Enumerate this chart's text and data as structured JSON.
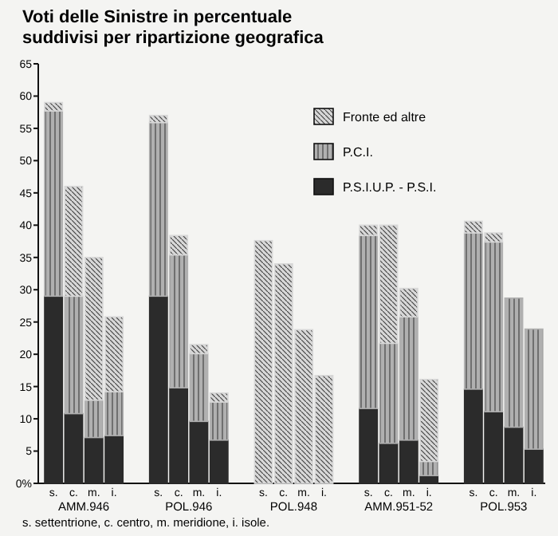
{
  "chart_data": {
    "type": "bar",
    "stacked": true,
    "title": "Voti delle Sinistre in percentuale\nsuddivisi per ripartizione geografica",
    "categories": [
      "s.",
      "c.",
      "m.",
      "i.",
      "s.",
      "c.",
      "m.",
      "i.",
      "s.",
      "c.",
      "m.",
      "i.",
      "s.",
      "c.",
      "m.",
      "i.",
      "s.",
      "c.",
      "m.",
      "i."
    ],
    "series": [
      {
        "name": "P.S.I.U.P. - P.S.I.",
        "color": "#2b2b2b",
        "values": [
          29.0,
          10.8,
          7.1,
          7.4,
          29.0,
          14.8,
          9.6,
          6.7,
          0,
          0,
          0,
          0,
          11.6,
          6.2,
          6.7,
          1.2,
          14.6,
          11.1,
          8.7,
          5.3
        ]
      },
      {
        "name": "P.C.I.",
        "color": "#b0b0b0",
        "values": [
          28.7,
          18.2,
          5.8,
          6.8,
          26.9,
          20.6,
          10.5,
          5.9,
          0,
          0,
          0,
          0,
          26.8,
          15.5,
          19.1,
          2.2,
          24.2,
          26.3,
          20.0,
          18.6
        ]
      },
      {
        "name": "Fronte ed altre",
        "color": "#d8d8d8",
        "values": [
          1.3,
          17.0,
          22.1,
          11.6,
          1.1,
          3.0,
          1.4,
          1.4,
          37.6,
          34.0,
          23.8,
          16.7,
          1.6,
          18.3,
          4.4,
          12.7,
          1.8,
          1.4,
          0,
          0
        ]
      }
    ],
    "ylim": [
      0,
      65
    ],
    "yticks": [
      {
        "value": 0,
        "label": "0%"
      },
      5,
      10,
      15,
      20,
      25,
      30,
      35,
      40,
      45,
      50,
      55,
      60,
      65
    ],
    "legend": "top right",
    "grid": false,
    "annotations": [
      "AMM.946",
      "POL.946",
      "POL.948",
      "AMM.951-52",
      "POL.953",
      "s. settentrione, c. centro, m. meridione, i. isole."
    ]
  }
}
